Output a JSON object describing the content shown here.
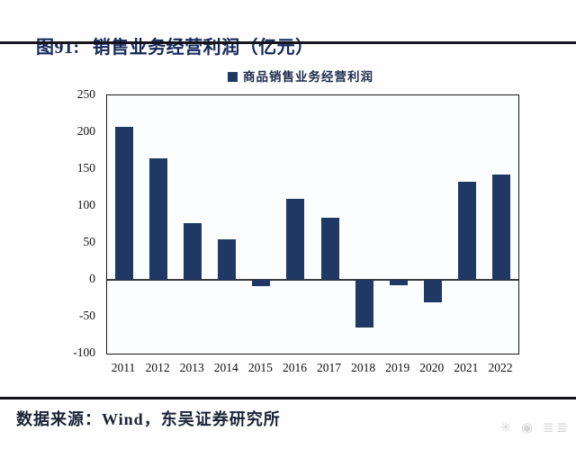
{
  "page": {
    "figure_label": "图91:",
    "title": "销售业务经营利润（亿元）",
    "source": "数据来源：Wind，东吴证券研究所"
  },
  "chart_data": {
    "type": "bar",
    "title": "销售业务经营利润（亿元）",
    "legend": [
      "商品销售业务经营利润"
    ],
    "legend_position": "top",
    "categories": [
      "2011",
      "2012",
      "2013",
      "2014",
      "2015",
      "2016",
      "2017",
      "2018",
      "2019",
      "2020",
      "2021",
      "2022"
    ],
    "values": [
      207,
      165,
      77,
      55,
      -8,
      110,
      84,
      -65,
      -7,
      -31,
      133,
      143
    ],
    "xlabel": "",
    "ylabel": "",
    "ylim": [
      -100,
      250
    ],
    "yticks": [
      250,
      200,
      150,
      100,
      50,
      0,
      -50,
      -100
    ],
    "grid": false,
    "bar_color": "#1f3864"
  },
  "colors": {
    "accent": "#1f3864",
    "title_text": "#15285a",
    "rule": "#14141c",
    "axis_text": "#111111",
    "plot_border": "#1b1b1b"
  },
  "watermark_glyphs": "✳ ◉ ≣≣"
}
